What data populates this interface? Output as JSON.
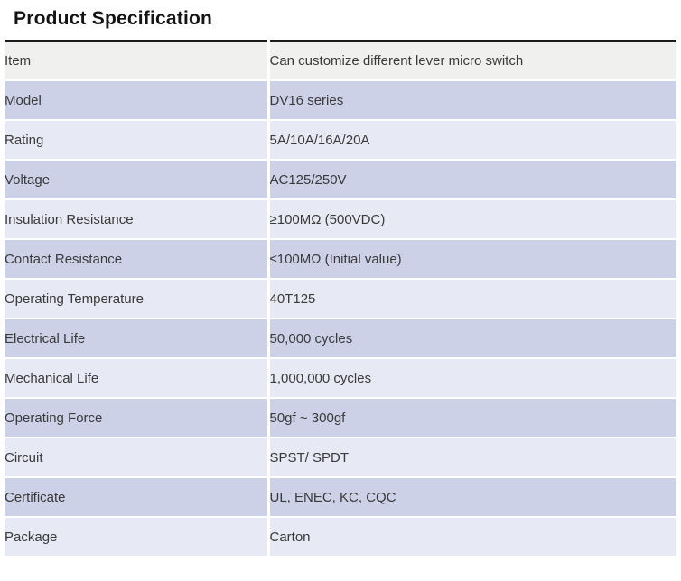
{
  "page": {
    "title": "Product Specification"
  },
  "colors": {
    "rule": "#1c1c1c",
    "row_gray": "#f0f0ef",
    "row_light": "#e7e9f4",
    "row_dark": "#ccd1e7",
    "separator": "#ffffff",
    "text": "#3a3a3a",
    "title_text": "#141414"
  },
  "table": {
    "columns": [
      "label",
      "value"
    ],
    "rows": [
      {
        "label": "Item",
        "value": "Can customize different lever micro switch",
        "shade": "gray"
      },
      {
        "label": "Model",
        "value": "DV16 series",
        "shade": "dark"
      },
      {
        "label": "Rating",
        "value": "5A/10A/16A/20A",
        "shade": "light"
      },
      {
        "label": "Voltage",
        "value": "AC125/250V",
        "shade": "dark"
      },
      {
        "label": "Insulation Resistance",
        "value": "≥100MΩ (500VDC)",
        "shade": "light"
      },
      {
        "label": "Contact Resistance",
        "value": "≤100MΩ (Initial value)",
        "shade": "dark"
      },
      {
        "label": "Operating Temperature",
        "value": "40T125",
        "shade": "light"
      },
      {
        "label": "Electrical Life",
        "value": "50,000 cycles",
        "shade": "dark"
      },
      {
        "label": "Mechanical Life",
        "value": "1,000,000 cycles",
        "shade": "light"
      },
      {
        "label": "Operating Force",
        "value": "50gf ~ 300gf",
        "shade": "dark"
      },
      {
        "label": "Circuit",
        "value": "SPST/ SPDT",
        "shade": "light"
      },
      {
        "label": "Certificate",
        "value": "UL, ENEC, KC, CQC",
        "shade": "dark"
      },
      {
        "label": "Package",
        "value": "Carton",
        "shade": "light"
      }
    ]
  }
}
